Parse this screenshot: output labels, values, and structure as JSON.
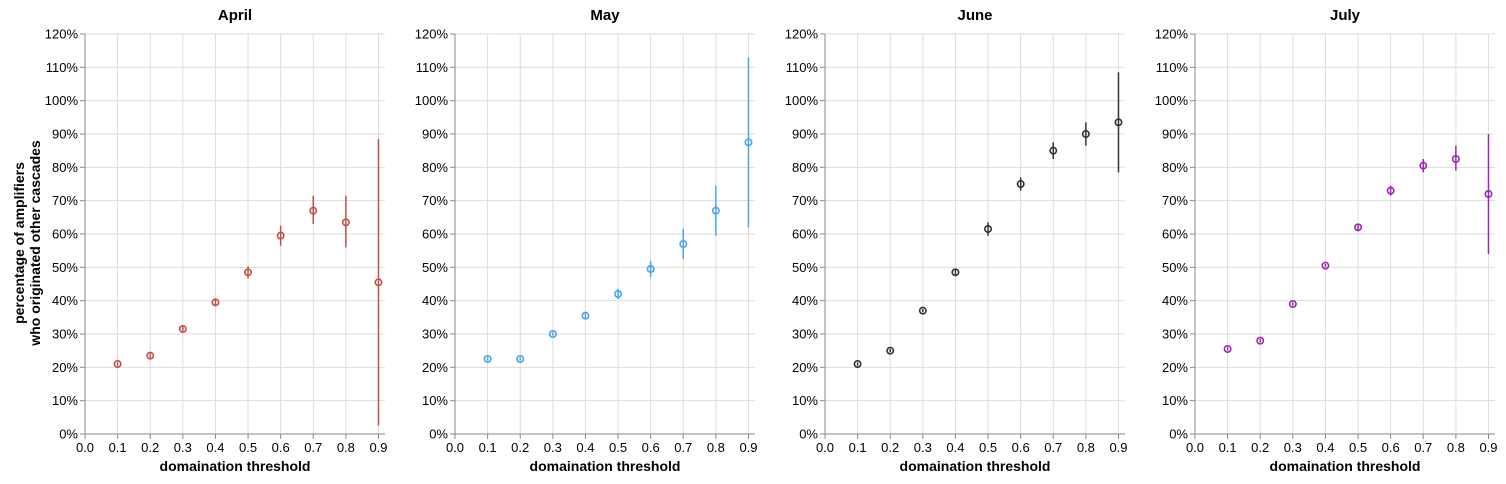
{
  "y_axis_title_lines": [
    "percentage of amplifiers",
    "who originated other cascades"
  ],
  "chart_data": [
    {
      "type": "scatter",
      "title": "April",
      "xlabel": "domaination threshold",
      "ylabel": "percentage of amplifiers who originated other cascades",
      "color": "#c0504d",
      "x": [
        0.1,
        0.2,
        0.3,
        0.4,
        0.5,
        0.6,
        0.7,
        0.8,
        0.9
      ],
      "y": [
        21,
        23.5,
        31.5,
        39.5,
        48.5,
        59.5,
        67,
        63.5,
        45.5
      ],
      "err_low": [
        20.5,
        22.8,
        30.8,
        38.5,
        46.7,
        56.5,
        63,
        56,
        2.5
      ],
      "err_high": [
        21.5,
        24.2,
        32.2,
        40.5,
        50.3,
        62.5,
        71.5,
        71.5,
        88.5
      ],
      "xticks": [
        "0.0",
        "0.1",
        "0.2",
        "0.3",
        "0.4",
        "0.5",
        "0.6",
        "0.7",
        "0.8",
        "0.9"
      ],
      "xlim": [
        0.0,
        0.92
      ],
      "ylim": [
        0,
        120
      ],
      "yticks": [
        "0%",
        "10%",
        "20%",
        "30%",
        "40%",
        "50%",
        "60%",
        "70%",
        "80%",
        "90%",
        "100%",
        "110%",
        "120%"
      ],
      "grid": true
    },
    {
      "type": "scatter",
      "title": "May",
      "xlabel": "domaination threshold",
      "ylabel": "",
      "color": "#4aa3ef",
      "x": [
        0.1,
        0.2,
        0.3,
        0.4,
        0.5,
        0.6,
        0.7,
        0.8,
        0.9
      ],
      "y": [
        22.5,
        22.5,
        30,
        35.5,
        42,
        49.5,
        57,
        67,
        87.5
      ],
      "err_low": [
        22,
        22,
        29.5,
        34.8,
        40.5,
        47,
        52.5,
        59.5,
        62
      ],
      "err_high": [
        23,
        23,
        30.5,
        36.2,
        43.5,
        52,
        61.5,
        74.5,
        113
      ],
      "xticks": [
        "0.0",
        "0.1",
        "0.2",
        "0.3",
        "0.4",
        "0.5",
        "0.6",
        "0.7",
        "0.8",
        "0.9"
      ],
      "xlim": [
        0.0,
        0.92
      ],
      "ylim": [
        0,
        120
      ],
      "yticks": [
        "0%",
        "10%",
        "20%",
        "30%",
        "40%",
        "50%",
        "60%",
        "70%",
        "80%",
        "90%",
        "100%",
        "110%",
        "120%"
      ],
      "grid": true
    },
    {
      "type": "scatter",
      "title": "June",
      "xlabel": "domaination threshold",
      "ylabel": "",
      "color": "#333333",
      "x": [
        0.1,
        0.2,
        0.3,
        0.4,
        0.5,
        0.6,
        0.7,
        0.8,
        0.9
      ],
      "y": [
        21,
        25,
        37,
        48.5,
        61.5,
        75,
        85,
        90,
        93.5
      ],
      "err_low": [
        20.5,
        24.5,
        36.5,
        47.5,
        59.5,
        73,
        82.5,
        86.5,
        78.5
      ],
      "err_high": [
        21.5,
        25.5,
        37.5,
        49.5,
        63.5,
        77,
        87.5,
        93.5,
        108.5
      ],
      "xticks": [
        "0.0",
        "0.1",
        "0.2",
        "0.3",
        "0.4",
        "0.5",
        "0.6",
        "0.7",
        "0.8",
        "0.9"
      ],
      "xlim": [
        0.0,
        0.92
      ],
      "ylim": [
        0,
        120
      ],
      "yticks": [
        "0%",
        "10%",
        "20%",
        "30%",
        "40%",
        "50%",
        "60%",
        "70%",
        "80%",
        "90%",
        "100%",
        "110%",
        "120%"
      ],
      "grid": true
    },
    {
      "type": "scatter",
      "title": "July",
      "xlabel": "domaination threshold",
      "ylabel": "",
      "color": "#9c27b0",
      "x": [
        0.1,
        0.2,
        0.3,
        0.4,
        0.5,
        0.6,
        0.7,
        0.8,
        0.9
      ],
      "y": [
        25.5,
        28,
        39,
        50.5,
        62,
        73,
        80.5,
        82.5,
        72
      ],
      "err_low": [
        25,
        27.5,
        38.5,
        50,
        61,
        71.5,
        78.5,
        79,
        54
      ],
      "err_high": [
        26,
        28.5,
        39.5,
        51,
        63,
        74.5,
        82.5,
        86.5,
        90
      ],
      "xticks": [
        "0.0",
        "0.1",
        "0.2",
        "0.3",
        "0.4",
        "0.5",
        "0.6",
        "0.7",
        "0.8",
        "0.9"
      ],
      "xlim": [
        0.0,
        0.92
      ],
      "ylim": [
        0,
        120
      ],
      "yticks": [
        "0%",
        "10%",
        "20%",
        "30%",
        "40%",
        "50%",
        "60%",
        "70%",
        "80%",
        "90%",
        "100%",
        "110%",
        "120%"
      ],
      "grid": true
    }
  ]
}
